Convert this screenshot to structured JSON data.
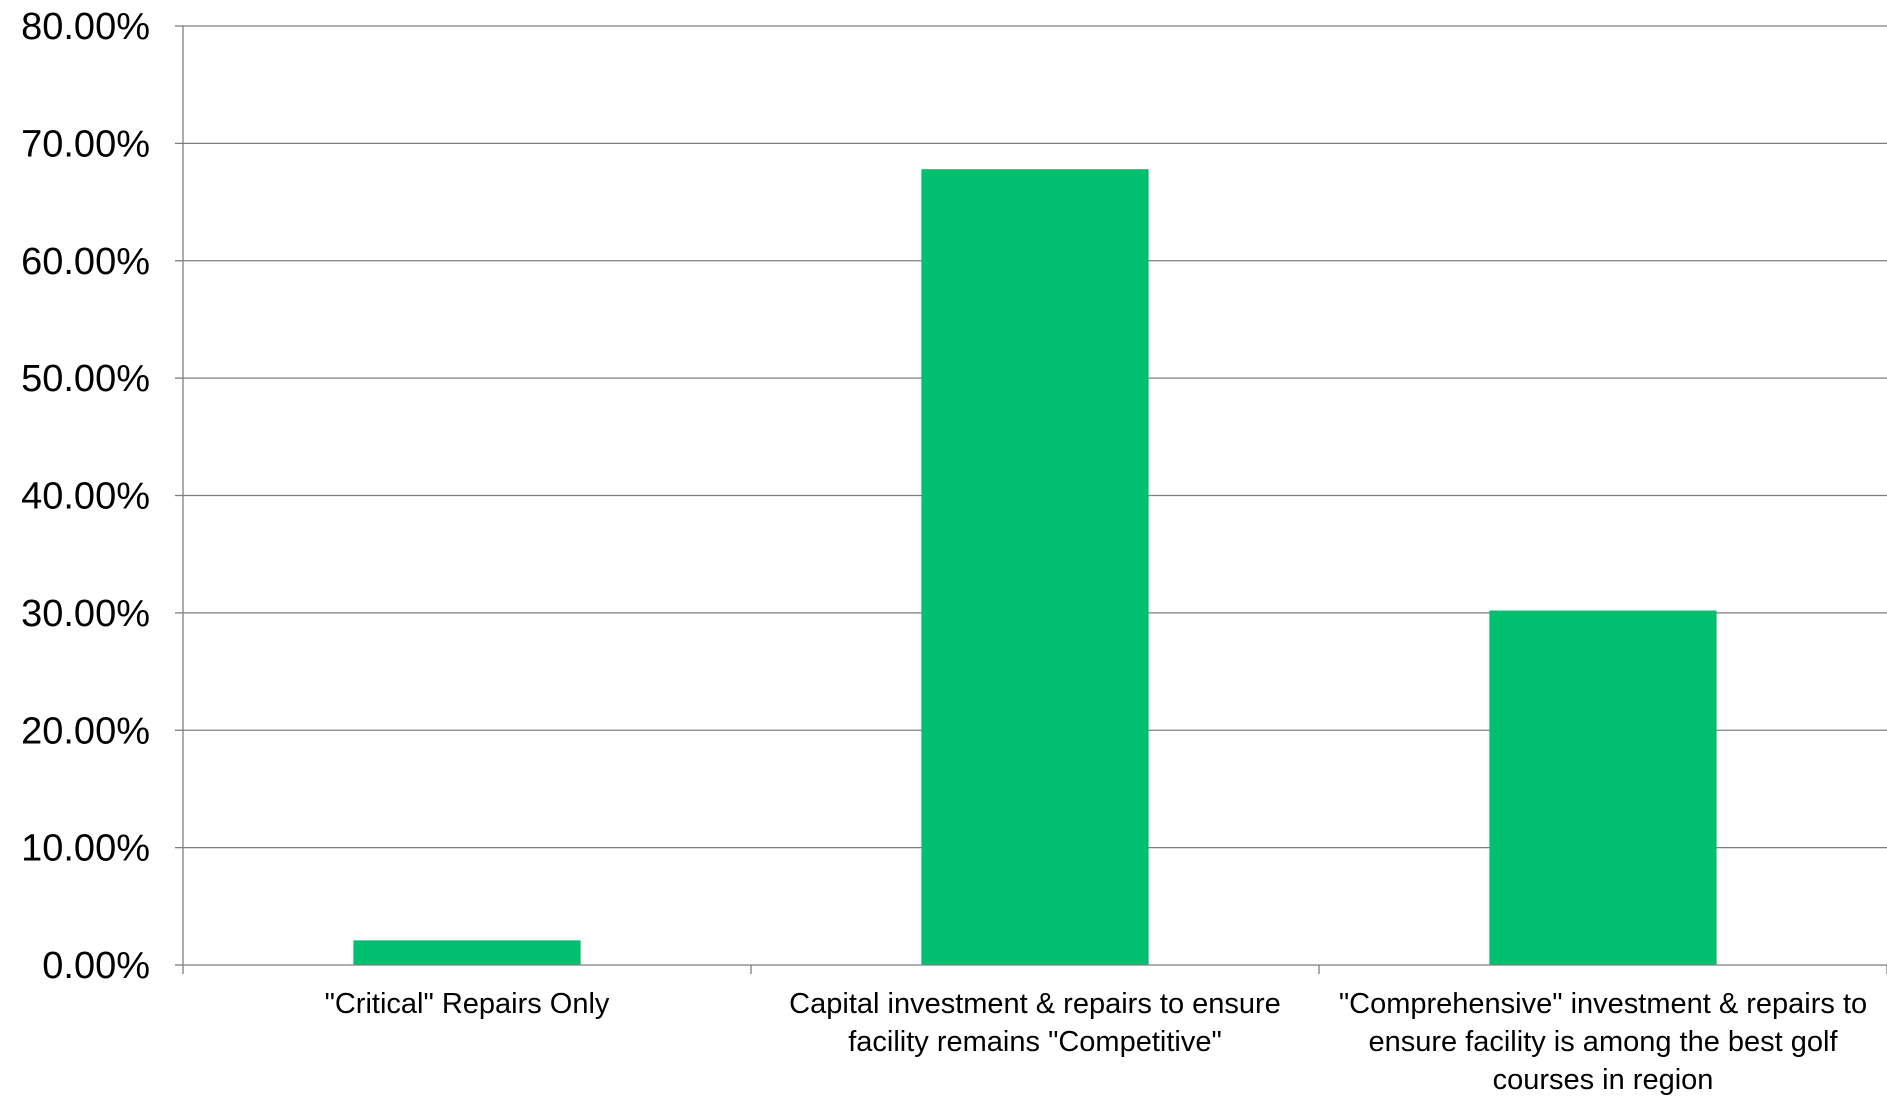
{
  "chart_data": {
    "type": "bar",
    "title": "",
    "xlabel": "",
    "ylabel": "",
    "categories": [
      [
        "\"Critical\" Repairs Only"
      ],
      [
        "Capital investment & repairs to ensure",
        "facility remains \"Competitive\""
      ],
      [
        "\"Comprehensive\" investment & repairs to",
        "ensure facility is among the best golf",
        "courses in region"
      ]
    ],
    "values": [
      0.021,
      0.678,
      0.302
    ],
    "ylim": [
      0,
      0.8
    ],
    "yticks": [
      0,
      0.1,
      0.2,
      0.3,
      0.4,
      0.5,
      0.6,
      0.7,
      0.8
    ],
    "ytick_labels": [
      "0.00%",
      "10.00%",
      "20.00%",
      "30.00%",
      "40.00%",
      "50.00%",
      "60.00%",
      "70.00%",
      "80.00%"
    ],
    "grid": true,
    "legend": "none",
    "colors": {
      "bar": "#00BF6F",
      "grid": "#7F7F7F",
      "axis": "#7F7F7F",
      "text": "#000000"
    }
  }
}
